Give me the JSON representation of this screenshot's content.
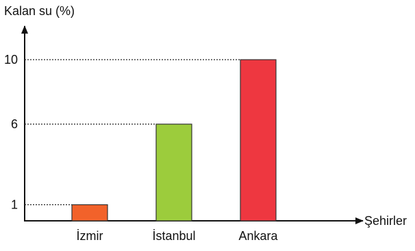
{
  "chart_data": {
    "type": "bar",
    "ylabel": "Kalan su (%)",
    "xlabel": "Şehirler",
    "categories": [
      "İzmir",
      "İstanbul",
      "Ankara"
    ],
    "values": [
      1,
      6,
      10
    ],
    "yticks": [
      1,
      6,
      10
    ],
    "ylim": [
      0,
      10
    ],
    "bar_colors": [
      "#f2622a",
      "#9ccc3c",
      "#ee3740"
    ],
    "bar_stroke": "#333333",
    "grid": false,
    "guide_lines": "dotted lines from y-axis to top of each bar",
    "legend": "none"
  }
}
